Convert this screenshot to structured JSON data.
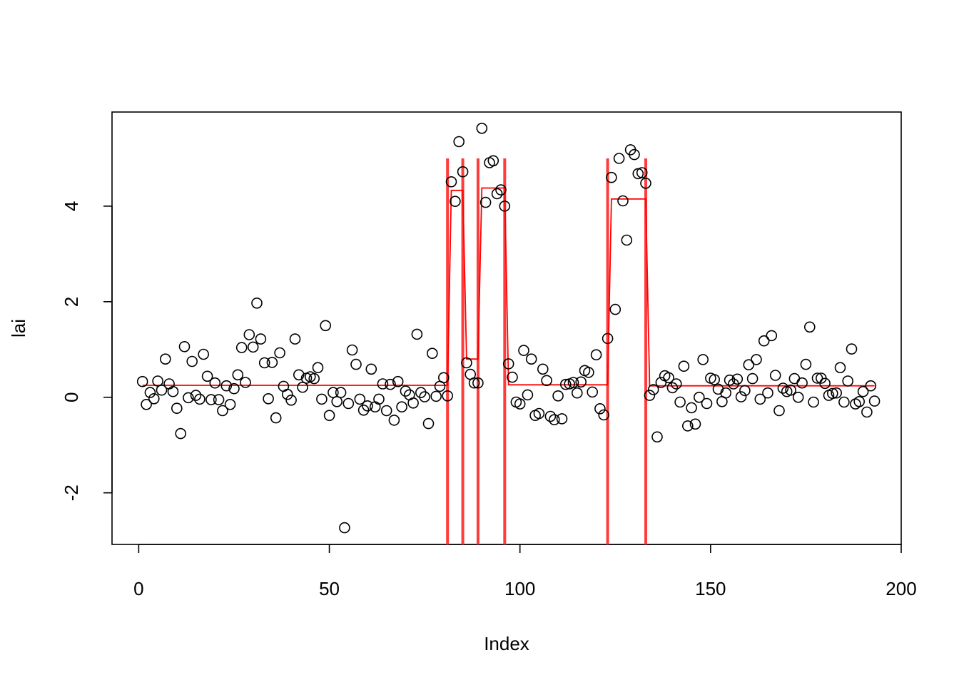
{
  "chart_data": {
    "type": "scatter",
    "title": "",
    "xlabel": "Index",
    "ylabel": "lai",
    "xlim": [
      -7,
      200
    ],
    "ylim": [
      -3.08,
      5.97
    ],
    "x_ticks": [
      0,
      50,
      100,
      150,
      200
    ],
    "x_tick_labels": [
      "0",
      "50",
      "100",
      "150",
      "200"
    ],
    "y_ticks": [
      -2,
      0,
      2,
      4
    ],
    "y_tick_labels": [
      "-2",
      "0",
      "2",
      "4"
    ],
    "grid": false,
    "legend": "none",
    "colors": {
      "points": "#000000",
      "fit": "#ff0000",
      "breaks": "#ff3b3b"
    },
    "points": [
      [
        1,
        0.33
      ],
      [
        2,
        -0.15
      ],
      [
        3,
        0.1
      ],
      [
        4,
        -0.03
      ],
      [
        5,
        0.34
      ],
      [
        6,
        0.15
      ],
      [
        7,
        0.8
      ],
      [
        8,
        0.28
      ],
      [
        9,
        0.12
      ],
      [
        10,
        -0.23
      ],
      [
        11,
        -0.76
      ],
      [
        12,
        1.06
      ],
      [
        13,
        -0.01
      ],
      [
        14,
        0.75
      ],
      [
        15,
        0.04
      ],
      [
        16,
        -0.04
      ],
      [
        17,
        0.9
      ],
      [
        18,
        0.44
      ],
      [
        19,
        -0.05
      ],
      [
        20,
        0.3
      ],
      [
        21,
        -0.05
      ],
      [
        22,
        -0.28
      ],
      [
        23,
        0.24
      ],
      [
        24,
        -0.15
      ],
      [
        25,
        0.18
      ],
      [
        26,
        0.47
      ],
      [
        27,
        1.04
      ],
      [
        28,
        0.31
      ],
      [
        29,
        1.31
      ],
      [
        30,
        1.05
      ],
      [
        31,
        1.97
      ],
      [
        32,
        1.22
      ],
      [
        33,
        0.72
      ],
      [
        34,
        -0.03
      ],
      [
        35,
        0.73
      ],
      [
        36,
        -0.43
      ],
      [
        37,
        0.93
      ],
      [
        38,
        0.23
      ],
      [
        39,
        0.06
      ],
      [
        40,
        -0.06
      ],
      [
        41,
        1.22
      ],
      [
        42,
        0.47
      ],
      [
        43,
        0.21
      ],
      [
        44,
        0.4
      ],
      [
        45,
        0.43
      ],
      [
        46,
        0.39
      ],
      [
        47,
        0.62
      ],
      [
        48,
        -0.04
      ],
      [
        49,
        1.5
      ],
      [
        50,
        -0.38
      ],
      [
        51,
        0.1
      ],
      [
        52,
        -0.09
      ],
      [
        53,
        0.1
      ],
      [
        54,
        -2.73
      ],
      [
        55,
        -0.13
      ],
      [
        56,
        0.99
      ],
      [
        57,
        0.69
      ],
      [
        58,
        -0.04
      ],
      [
        59,
        -0.27
      ],
      [
        60,
        -0.18
      ],
      [
        61,
        0.59
      ],
      [
        62,
        -0.2
      ],
      [
        63,
        -0.04
      ],
      [
        64,
        0.28
      ],
      [
        65,
        -0.28
      ],
      [
        66,
        0.27
      ],
      [
        67,
        -0.48
      ],
      [
        68,
        0.33
      ],
      [
        69,
        -0.2
      ],
      [
        70,
        0.13
      ],
      [
        71,
        0.05
      ],
      [
        72,
        -0.12
      ],
      [
        73,
        1.32
      ],
      [
        74,
        0.1
      ],
      [
        75,
        0.01
      ],
      [
        76,
        -0.55
      ],
      [
        77,
        0.92
      ],
      [
        78,
        0.02
      ],
      [
        79,
        0.23
      ],
      [
        80,
        0.41
      ],
      [
        81,
        0.03
      ],
      [
        82,
        4.51
      ],
      [
        83,
        4.1
      ],
      [
        84,
        5.35
      ],
      [
        85,
        4.72
      ],
      [
        86,
        0.72
      ],
      [
        87,
        0.48
      ],
      [
        88,
        0.3
      ],
      [
        89,
        0.3
      ],
      [
        90,
        5.63
      ],
      [
        91,
        4.08
      ],
      [
        92,
        4.91
      ],
      [
        93,
        4.95
      ],
      [
        94,
        4.26
      ],
      [
        95,
        4.34
      ],
      [
        96,
        4.0
      ],
      [
        97,
        0.7
      ],
      [
        98,
        0.42
      ],
      [
        99,
        -0.1
      ],
      [
        100,
        -0.14
      ],
      [
        101,
        0.98
      ],
      [
        102,
        0.05
      ],
      [
        103,
        0.8
      ],
      [
        104,
        -0.38
      ],
      [
        105,
        -0.34
      ],
      [
        106,
        0.59
      ],
      [
        107,
        0.35
      ],
      [
        108,
        -0.4
      ],
      [
        109,
        -0.47
      ],
      [
        110,
        0.03
      ],
      [
        111,
        -0.45
      ],
      [
        112,
        0.27
      ],
      [
        113,
        0.28
      ],
      [
        114,
        0.31
      ],
      [
        115,
        0.09
      ],
      [
        116,
        0.32
      ],
      [
        117,
        0.56
      ],
      [
        118,
        0.52
      ],
      [
        119,
        0.11
      ],
      [
        120,
        0.89
      ],
      [
        121,
        -0.24
      ],
      [
        122,
        -0.37
      ],
      [
        123,
        1.23
      ],
      [
        124,
        4.6
      ],
      [
        125,
        1.84
      ],
      [
        126,
        5.0
      ],
      [
        127,
        4.11
      ],
      [
        128,
        3.29
      ],
      [
        129,
        5.18
      ],
      [
        130,
        5.08
      ],
      [
        131,
        4.68
      ],
      [
        132,
        4.7
      ],
      [
        133,
        4.48
      ],
      [
        134,
        0.04
      ],
      [
        135,
        0.16
      ],
      [
        136,
        -0.83
      ],
      [
        137,
        0.31
      ],
      [
        138,
        0.45
      ],
      [
        139,
        0.41
      ],
      [
        140,
        0.2
      ],
      [
        141,
        0.28
      ],
      [
        142,
        -0.1
      ],
      [
        143,
        0.65
      ],
      [
        144,
        -0.6
      ],
      [
        145,
        -0.22
      ],
      [
        146,
        -0.56
      ],
      [
        147,
        0.0
      ],
      [
        148,
        0.79
      ],
      [
        149,
        -0.13
      ],
      [
        150,
        0.4
      ],
      [
        151,
        0.37
      ],
      [
        152,
        0.17
      ],
      [
        153,
        -0.09
      ],
      [
        154,
        0.09
      ],
      [
        155,
        0.36
      ],
      [
        156,
        0.28
      ],
      [
        157,
        0.38
      ],
      [
        158,
        0.01
      ],
      [
        159,
        0.14
      ],
      [
        160,
        0.68
      ],
      [
        161,
        0.39
      ],
      [
        162,
        0.79
      ],
      [
        163,
        -0.04
      ],
      [
        164,
        1.18
      ],
      [
        165,
        0.09
      ],
      [
        166,
        1.29
      ],
      [
        167,
        0.46
      ],
      [
        168,
        -0.28
      ],
      [
        169,
        0.19
      ],
      [
        170,
        0.12
      ],
      [
        171,
        0.15
      ],
      [
        172,
        0.39
      ],
      [
        173,
        0.0
      ],
      [
        174,
        0.3
      ],
      [
        175,
        0.69
      ],
      [
        176,
        1.47
      ],
      [
        177,
        -0.1
      ],
      [
        178,
        0.4
      ],
      [
        179,
        0.4
      ],
      [
        180,
        0.29
      ],
      [
        181,
        0.04
      ],
      [
        182,
        0.08
      ],
      [
        183,
        0.09
      ],
      [
        184,
        0.62
      ],
      [
        185,
        -0.1
      ],
      [
        186,
        0.34
      ],
      [
        187,
        1.01
      ],
      [
        188,
        -0.14
      ],
      [
        189,
        -0.09
      ],
      [
        190,
        0.12
      ],
      [
        191,
        -0.31
      ],
      [
        192,
        0.24
      ],
      [
        193,
        -0.08
      ]
    ],
    "fitted_segments": [
      {
        "start": 1,
        "end": 81,
        "value": 0.25
      },
      {
        "start": 82,
        "end": 85,
        "value": 4.33
      },
      {
        "start": 86,
        "end": 89,
        "value": 0.8
      },
      {
        "start": 90,
        "end": 96,
        "value": 4.38
      },
      {
        "start": 97,
        "end": 123,
        "value": 0.26
      },
      {
        "start": 124,
        "end": 133,
        "value": 4.15
      },
      {
        "start": 134,
        "end": 193,
        "value": 0.24
      }
    ],
    "breakpoints": [
      81,
      85,
      89,
      96,
      123,
      133
    ],
    "breakpoint_ylim": [
      -3.08,
      5.0
    ]
  }
}
